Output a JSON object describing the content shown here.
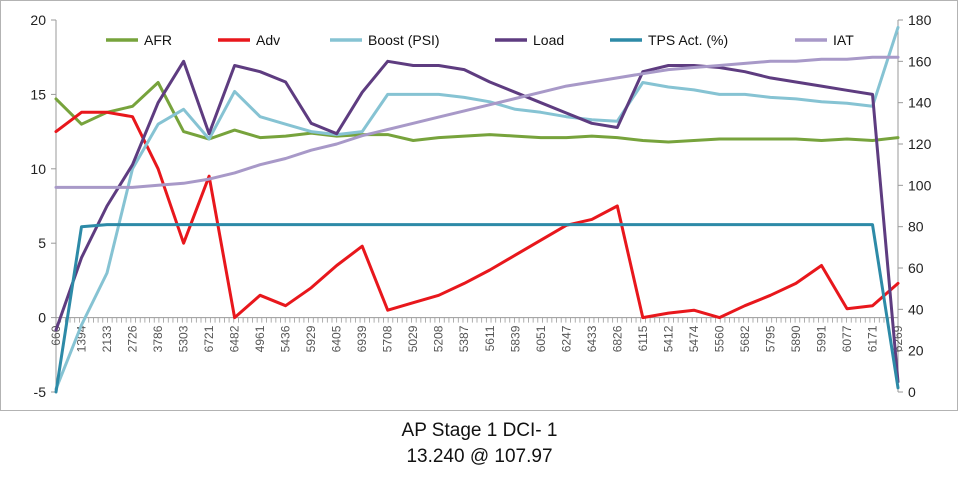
{
  "caption": {
    "line1": "AP Stage 1 DCI- 1",
    "line2": "13.240 @ 107.97"
  },
  "chart_data": {
    "type": "line",
    "title": "",
    "xlabel": "",
    "ylabel": "",
    "y_left": {
      "min": -5,
      "max": 20,
      "ticks": [
        "-5",
        "0",
        "5",
        "10",
        "15",
        "20"
      ]
    },
    "y_right": {
      "min": 0,
      "max": 180,
      "ticks": [
        "0",
        "20",
        "40",
        "60",
        "80",
        "100",
        "120",
        "140",
        "160",
        "180"
      ]
    },
    "x_tick_labels": [
      "660",
      "1394",
      "2133",
      "2726",
      "3786",
      "5303",
      "6721",
      "6482",
      "4961",
      "5436",
      "5929",
      "6405",
      "6939",
      "5708",
      "5029",
      "5208",
      "5387",
      "5611",
      "5839",
      "6051",
      "6247",
      "6433",
      "6826",
      "6115",
      "5412",
      "5474",
      "5560",
      "5682",
      "5795",
      "5890",
      "5991",
      "6077",
      "6171",
      "6269"
    ],
    "legend_position": "top",
    "grid": false,
    "series": [
      {
        "name": "AFR",
        "color": "#77a33c",
        "axis": "left",
        "x": [
          0,
          1,
          2,
          3,
          4,
          5,
          6,
          7,
          8,
          9,
          10,
          11,
          12,
          13,
          14,
          15,
          16,
          17,
          18,
          19,
          20,
          21,
          22,
          23,
          24,
          25,
          26,
          27,
          28,
          29,
          30,
          31,
          32,
          33
        ],
        "values": [
          14.7,
          13.0,
          13.8,
          14.2,
          15.8,
          12.5,
          12.0,
          12.6,
          12.1,
          12.2,
          12.4,
          12.2,
          12.3,
          12.3,
          11.9,
          12.1,
          12.2,
          12.3,
          12.2,
          12.1,
          12.1,
          12.2,
          12.1,
          11.9,
          11.8,
          11.9,
          12.0,
          12.0,
          12.0,
          12.0,
          11.9,
          12.0,
          11.9,
          12.1
        ]
      },
      {
        "name": "Adv",
        "color": "#e8171c",
        "axis": "left",
        "x": [
          0,
          1,
          2,
          3,
          4,
          5,
          6,
          7,
          8,
          9,
          10,
          11,
          12,
          13,
          14,
          15,
          16,
          17,
          18,
          19,
          20,
          21,
          22,
          23,
          24,
          25,
          26,
          27,
          28,
          29,
          30,
          31,
          32,
          33
        ],
        "values": [
          12.5,
          13.8,
          13.8,
          13.5,
          10.0,
          5.0,
          9.5,
          0.0,
          1.5,
          0.8,
          2.0,
          3.5,
          4.8,
          0.5,
          1.0,
          1.5,
          2.3,
          3.2,
          4.2,
          5.2,
          6.2,
          6.6,
          7.5,
          0.0,
          0.3,
          0.5,
          0.0,
          0.8,
          1.5,
          2.3,
          3.5,
          0.6,
          0.8,
          2.3
        ]
      },
      {
        "name": "Boost (PSI)",
        "color": "#86c3d3",
        "axis": "left",
        "x": [
          0,
          1,
          2,
          3,
          4,
          5,
          6,
          7,
          8,
          9,
          10,
          11,
          12,
          13,
          14,
          15,
          16,
          17,
          18,
          19,
          20,
          21,
          22,
          23,
          24,
          25,
          26,
          27,
          28,
          29,
          30,
          31,
          32,
          33
        ],
        "values": [
          -4.8,
          -0.5,
          3.0,
          10.0,
          13.0,
          14.0,
          12.0,
          15.2,
          13.5,
          13.0,
          12.5,
          12.3,
          12.5,
          15.0,
          15.0,
          15.0,
          14.8,
          14.5,
          14.0,
          13.8,
          13.5,
          13.3,
          13.2,
          15.8,
          15.5,
          15.3,
          15.0,
          15.0,
          14.8,
          14.7,
          14.5,
          14.4,
          14.2,
          19.5
        ]
      },
      {
        "name": "Load",
        "color": "#5e3c80",
        "axis": "right",
        "x": [
          0,
          1,
          2,
          3,
          4,
          5,
          6,
          7,
          8,
          9,
          10,
          11,
          12,
          13,
          14,
          15,
          16,
          17,
          18,
          19,
          20,
          21,
          22,
          23,
          24,
          25,
          26,
          27,
          28,
          29,
          30,
          31,
          32,
          33
        ],
        "values": [
          30,
          65,
          90,
          110,
          140,
          160,
          125,
          158,
          155,
          150,
          130,
          125,
          145,
          160,
          158,
          158,
          156,
          150,
          145,
          140,
          135,
          130,
          128,
          155,
          158,
          158,
          157,
          155,
          152,
          150,
          148,
          146,
          144,
          5
        ]
      },
      {
        "name": "TPS Act. (%)",
        "color": "#2d8aa7",
        "axis": "right",
        "x": [
          0,
          1,
          2,
          3,
          4,
          5,
          6,
          7,
          8,
          9,
          10,
          11,
          12,
          13,
          14,
          15,
          16,
          17,
          18,
          19,
          20,
          21,
          22,
          23,
          24,
          25,
          26,
          27,
          28,
          29,
          30,
          31,
          32,
          33
        ],
        "values": [
          0,
          80,
          81,
          81,
          81,
          81,
          81,
          81,
          81,
          81,
          81,
          81,
          81,
          81,
          81,
          81,
          81,
          81,
          81,
          81,
          81,
          81,
          81,
          81,
          81,
          81,
          81,
          81,
          81,
          81,
          81,
          81,
          81,
          2
        ]
      },
      {
        "name": "IAT",
        "color": "#a899c8",
        "axis": "right",
        "x": [
          0,
          1,
          2,
          3,
          4,
          5,
          6,
          7,
          8,
          9,
          10,
          11,
          12,
          13,
          14,
          15,
          16,
          17,
          18,
          19,
          20,
          21,
          22,
          23,
          24,
          25,
          26,
          27,
          28,
          29,
          30,
          31,
          32,
          33
        ],
        "values": [
          99,
          99,
          99,
          99,
          100,
          101,
          103,
          106,
          110,
          113,
          117,
          120,
          124,
          127,
          130,
          133,
          136,
          139,
          142,
          145,
          148,
          150,
          152,
          154,
          156,
          157,
          158,
          159,
          160,
          160,
          161,
          161,
          162,
          162
        ]
      }
    ]
  }
}
